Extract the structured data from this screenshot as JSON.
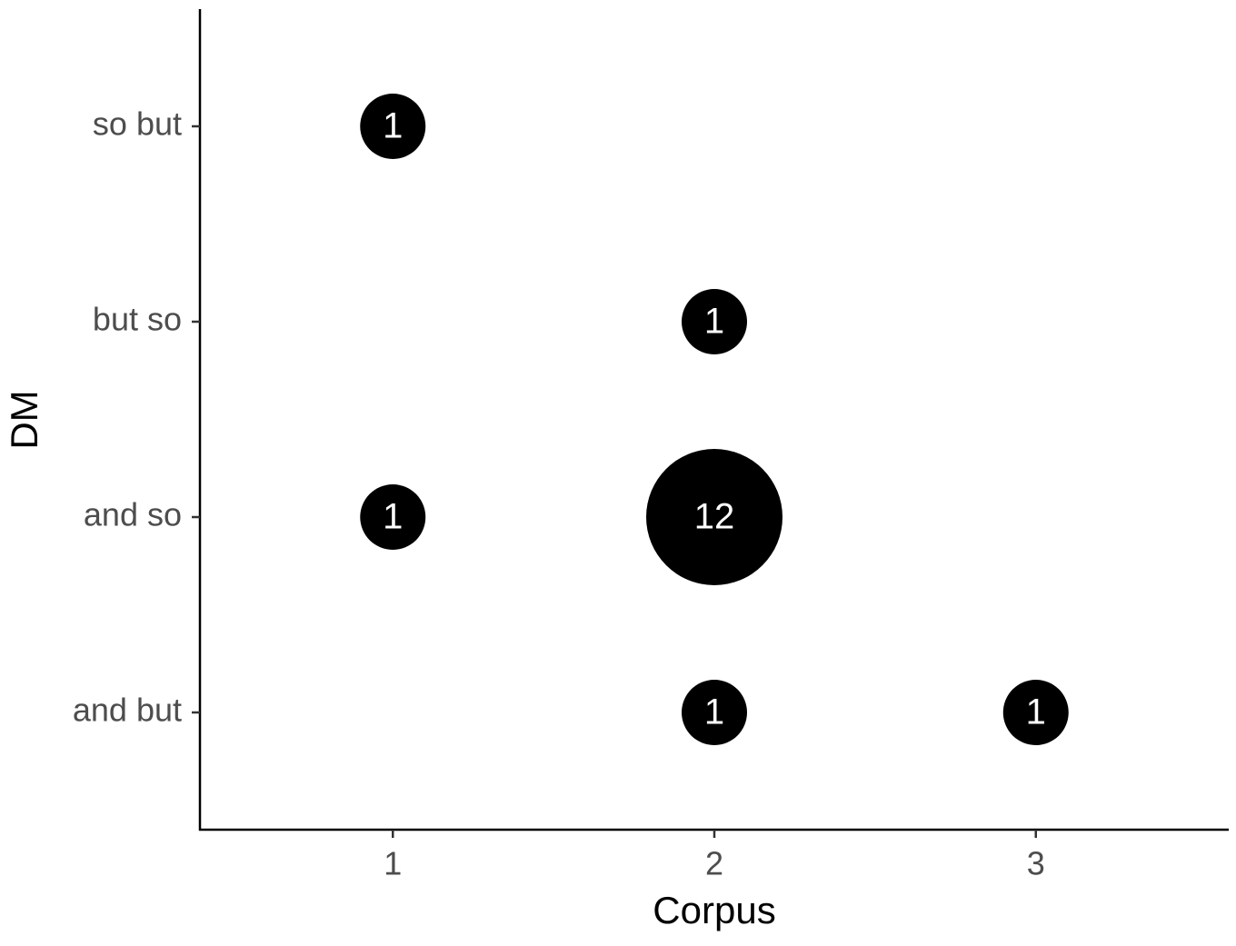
{
  "chart_data": {
    "type": "bubble",
    "x_label": "Corpus",
    "y_label": "DM",
    "xlim": [
      0.4,
      3.6
    ],
    "xticks": [
      1,
      2,
      3
    ],
    "categories": [
      "and but",
      "and so",
      "but so",
      "so but"
    ],
    "points": [
      {
        "x": 1,
        "y": "so but",
        "size": 1
      },
      {
        "x": 2,
        "y": "but so",
        "size": 1
      },
      {
        "x": 1,
        "y": "and so",
        "size": 1
      },
      {
        "x": 2,
        "y": "and so",
        "size": 12
      },
      {
        "x": 2,
        "y": "and but",
        "size": 1
      },
      {
        "x": 3,
        "y": "and but",
        "size": 1
      }
    ],
    "color": "#000000"
  }
}
